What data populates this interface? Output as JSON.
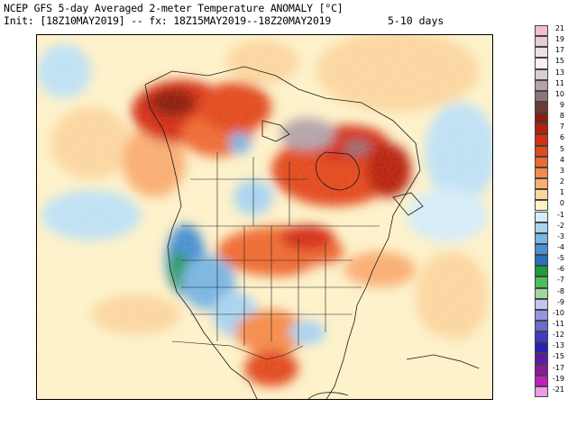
{
  "header": {
    "line1": "NCEP GFS 5-day Averaged 2-meter Temperature ANOMALY [°C]",
    "line2": "Init: [18Z10MAY2019] -- fx: 18Z15MAY2019--18Z20MAY2019",
    "range": "5-10 days"
  },
  "colorbar": {
    "entries": [
      {
        "label": "21",
        "color": "#f2bfcf"
      },
      {
        "label": "19",
        "color": "#e6cdd6"
      },
      {
        "label": "17",
        "color": "#efe0e4"
      },
      {
        "label": "15",
        "color": "#f8f0f2"
      },
      {
        "label": "13",
        "color": "#d9cfd2"
      },
      {
        "label": "11",
        "color": "#b3a3a8"
      },
      {
        "label": "10",
        "color": "#8e7378"
      },
      {
        "label": "9",
        "color": "#6e3a36"
      },
      {
        "label": "8",
        "color": "#8a1f10"
      },
      {
        "label": "7",
        "color": "#b8200c"
      },
      {
        "label": "6",
        "color": "#d32f15"
      },
      {
        "label": "5",
        "color": "#e24a1e"
      },
      {
        "label": "4",
        "color": "#ee6a30"
      },
      {
        "label": "3",
        "color": "#f58b4b"
      },
      {
        "label": "2",
        "color": "#f9ad72"
      },
      {
        "label": "1",
        "color": "#fbd69f"
      },
      {
        "label": "0",
        "color": "#fdf1c8"
      },
      {
        "label": "-1",
        "color": "#d5ecf7"
      },
      {
        "label": "-2",
        "color": "#a9d3ef"
      },
      {
        "label": "-3",
        "color": "#79b5e2"
      },
      {
        "label": "-4",
        "color": "#4a8fd0"
      },
      {
        "label": "-5",
        "color": "#2b6fbd"
      },
      {
        "label": "-6",
        "color": "#1f9a3d"
      },
      {
        "label": "-7",
        "color": "#4bbf5a"
      },
      {
        "label": "-8",
        "color": "#9fd89a"
      },
      {
        "label": "-9",
        "color": "#c4c4f0"
      },
      {
        "label": "-10",
        "color": "#9696e0"
      },
      {
        "label": "-11",
        "color": "#6a6ad0"
      },
      {
        "label": "-12",
        "color": "#3d3dc4"
      },
      {
        "label": "-13",
        "color": "#2a1fb0"
      },
      {
        "label": "-15",
        "color": "#5a1ca0"
      },
      {
        "label": "-17",
        "color": "#8a1a9a"
      },
      {
        "label": "-19",
        "color": "#c21ec0"
      },
      {
        "label": "-21",
        "color": "#f09ae8"
      }
    ]
  },
  "map": {
    "region": "North America",
    "variable": "2-meter temperature anomaly",
    "units": "°C"
  }
}
